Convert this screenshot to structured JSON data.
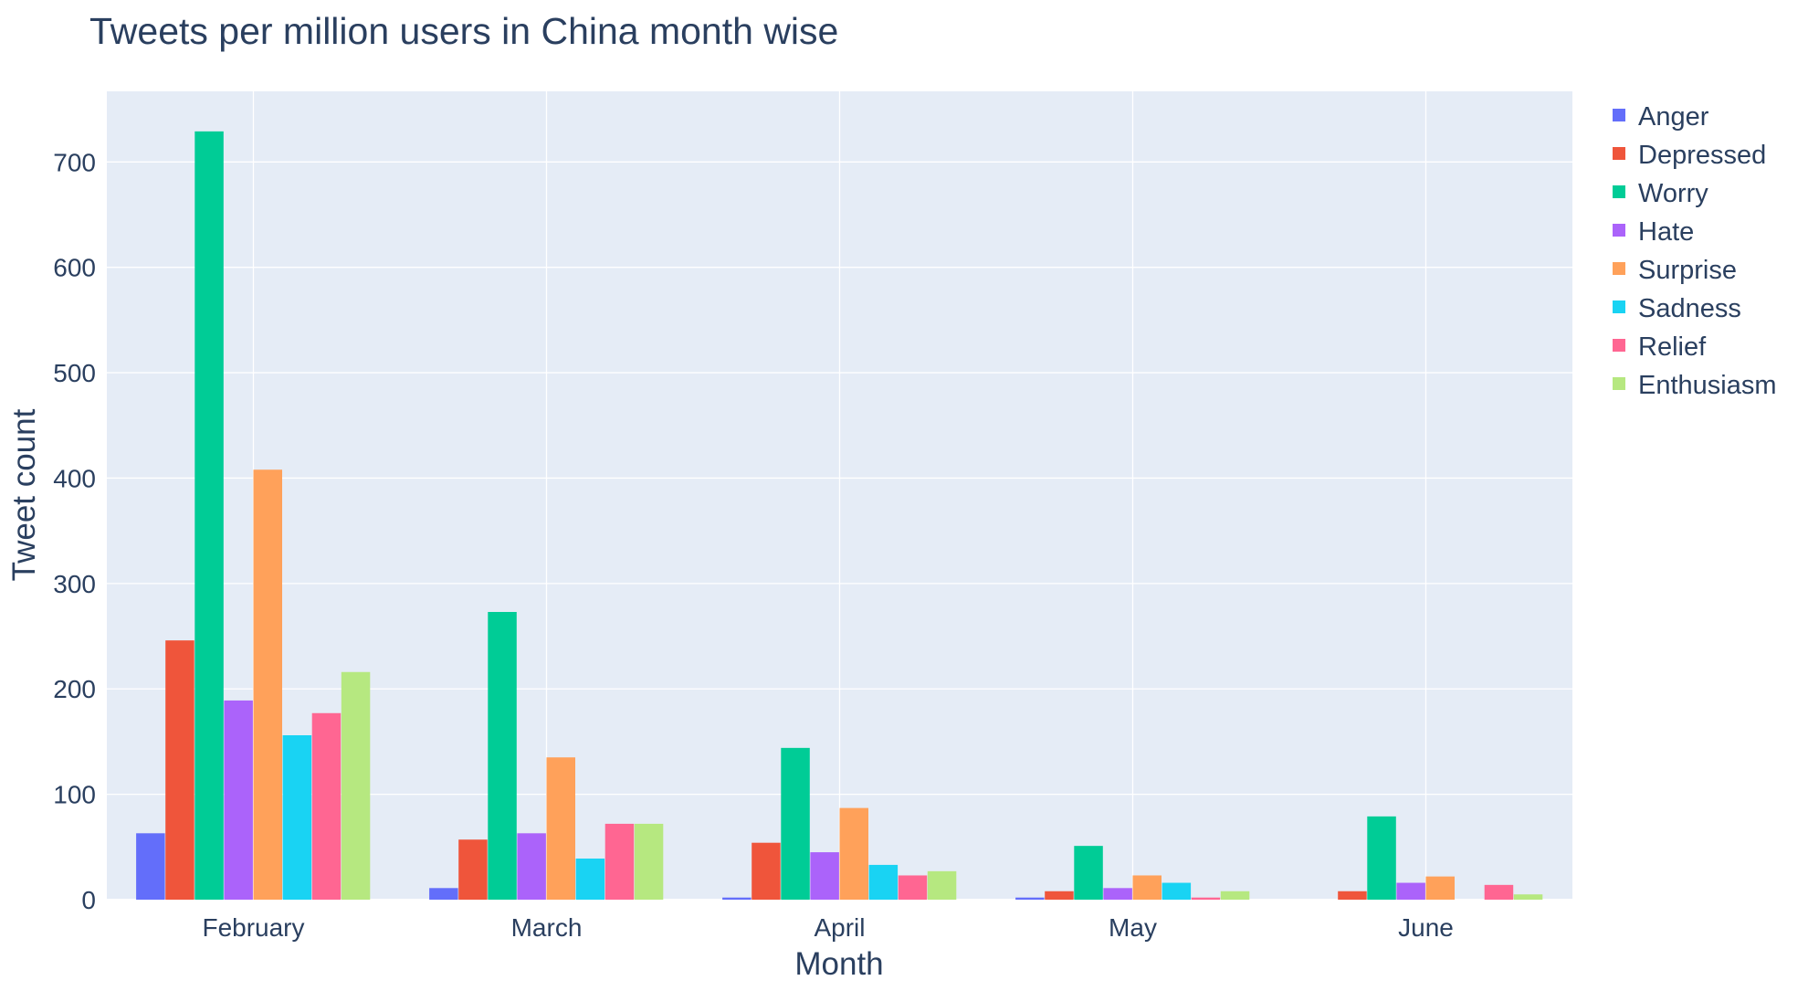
{
  "chart_data": {
    "type": "bar",
    "title": "Tweets per million users in China month wise",
    "xlabel": "Month",
    "ylabel": "Tweet count",
    "categories": [
      "February",
      "March",
      "April",
      "May",
      "June"
    ],
    "ylim": [
      0,
      767
    ],
    "yticks": [
      0,
      100,
      200,
      300,
      400,
      500,
      600,
      700
    ],
    "grid": true,
    "legend_position": "right",
    "series": [
      {
        "name": "Anger",
        "color": "#636efa",
        "values": [
          63,
          11,
          2,
          2,
          0
        ]
      },
      {
        "name": "Depressed",
        "color": "#ef553b",
        "values": [
          246,
          57,
          54,
          8,
          8
        ]
      },
      {
        "name": "Worry",
        "color": "#00cc96",
        "values": [
          729,
          273,
          144,
          51,
          79
        ]
      },
      {
        "name": "Hate",
        "color": "#ab63fa",
        "values": [
          189,
          63,
          45,
          11,
          16
        ]
      },
      {
        "name": "Surprise",
        "color": "#ffa15a",
        "values": [
          408,
          135,
          87,
          23,
          22
        ]
      },
      {
        "name": "Sadness",
        "color": "#19d3f3",
        "values": [
          156,
          39,
          33,
          16,
          0
        ]
      },
      {
        "name": "Relief",
        "color": "#ff6692",
        "values": [
          177,
          72,
          23,
          2,
          14
        ]
      },
      {
        "name": "Enthusiasm",
        "color": "#b6e880",
        "values": [
          216,
          72,
          27,
          8,
          5
        ]
      }
    ]
  },
  "colors": {
    "plot_background": "#e5ecf6",
    "gridline": "#ffffff",
    "text": "#2a3f5f"
  }
}
